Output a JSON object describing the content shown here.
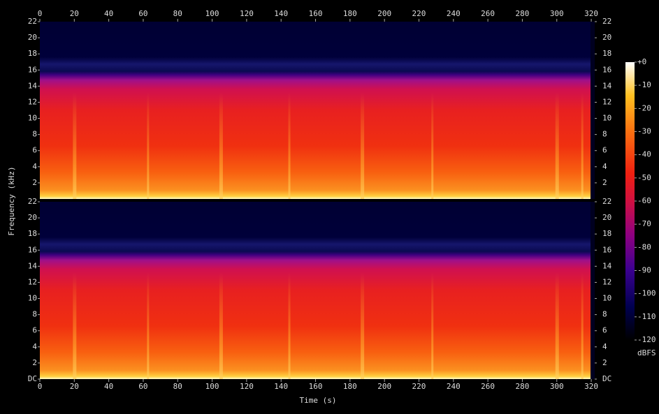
{
  "chart_data": {
    "type": "spectrogram",
    "xlabel": "Time (s)",
    "ylabel": "Frequency (kHz)",
    "channels": 2,
    "xlim": [
      0,
      322
    ],
    "xticks": [
      0,
      20,
      40,
      60,
      80,
      100,
      120,
      140,
      160,
      180,
      200,
      220,
      240,
      260,
      280,
      300,
      320
    ],
    "ylim": [
      0,
      22
    ],
    "yticks": [
      {
        "value": 0,
        "label": "DC"
      },
      2,
      4,
      6,
      8,
      10,
      12,
      14,
      16,
      18,
      20,
      22
    ],
    "colorbar": {
      "label": "dBFS",
      "lim": [
        -120,
        0
      ],
      "ticks": [
        {
          "value": 0,
          "label": "+0"
        },
        -10,
        -20,
        -30,
        -40,
        -50,
        -60,
        -70,
        -80,
        -90,
        -100,
        -110,
        -120
      ]
    }
  }
}
